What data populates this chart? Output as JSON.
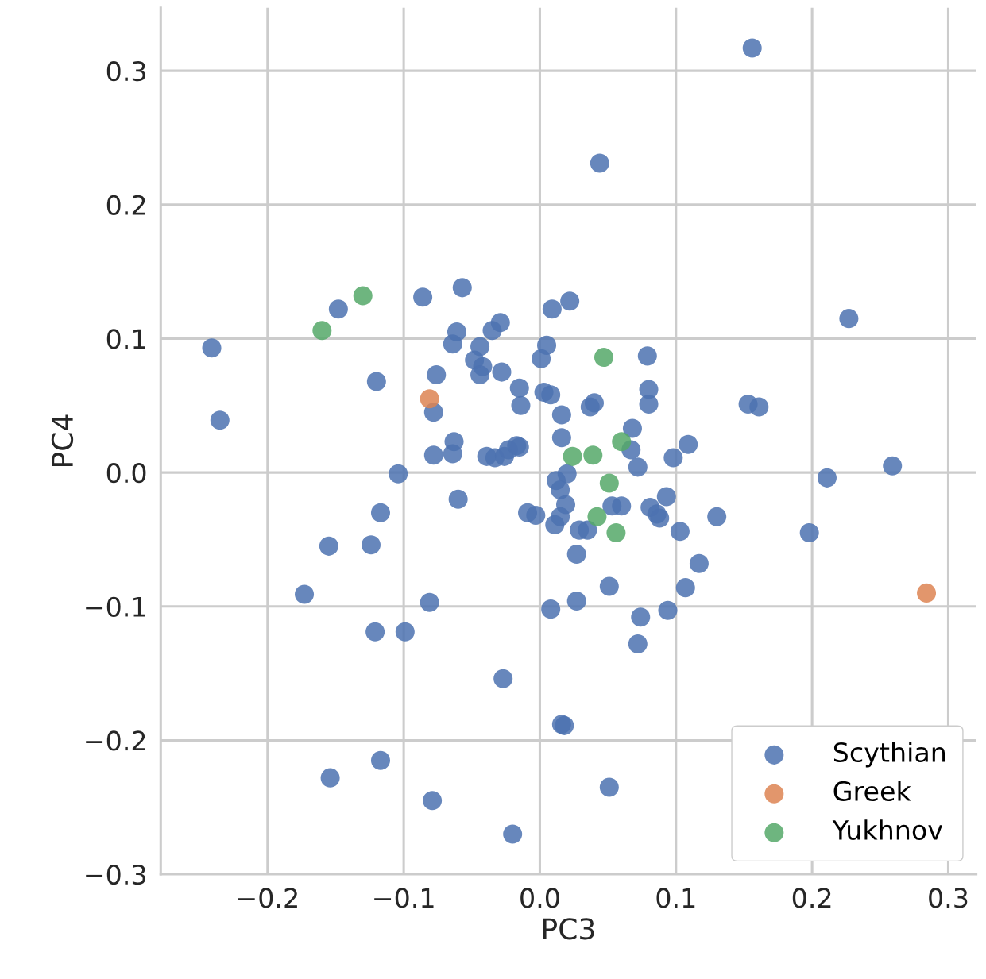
{
  "chart_data": {
    "type": "scatter",
    "xlabel": "PC3",
    "ylabel": "PC4",
    "xlim": [
      -0.2785,
      0.3205
    ],
    "ylim": [
      -0.3,
      0.347
    ],
    "xticks": [
      {
        "value": -0.2,
        "label": "−0.2"
      },
      {
        "value": -0.1,
        "label": "−0.1"
      },
      {
        "value": 0.0,
        "label": "0.0"
      },
      {
        "value": 0.1,
        "label": "0.1"
      },
      {
        "value": 0.2,
        "label": "0.2"
      },
      {
        "value": 0.3,
        "label": "0.3"
      }
    ],
    "yticks": [
      {
        "value": -0.3,
        "label": "−0.3"
      },
      {
        "value": -0.2,
        "label": "−0.2"
      },
      {
        "value": -0.1,
        "label": "−0.1"
      },
      {
        "value": 0.0,
        "label": "0.0"
      },
      {
        "value": 0.1,
        "label": "0.1"
      },
      {
        "value": 0.2,
        "label": "0.2"
      },
      {
        "value": 0.3,
        "label": "0.3"
      }
    ],
    "grid": true,
    "legend": "bottom right",
    "marker": "circle",
    "series": [
      {
        "name": "Scythian",
        "color": "#4c72b0",
        "x": [
          0.156,
          0.044,
          0.227,
          -0.241,
          -0.235,
          -0.148,
          -0.086,
          -0.057,
          0.009,
          0.022,
          -0.061,
          -0.029,
          -0.035,
          -0.064,
          -0.044,
          0.005,
          -0.048,
          -0.042,
          -0.044,
          -0.028,
          -0.076,
          0.001,
          0.079,
          -0.12,
          -0.015,
          -0.014,
          0.003,
          0.008,
          0.016,
          0.037,
          0.04,
          0.08,
          0.08,
          0.153,
          0.161,
          -0.078,
          -0.063,
          -0.064,
          -0.078,
          -0.039,
          -0.033,
          -0.026,
          -0.023,
          -0.017,
          -0.015,
          0.016,
          0.068,
          0.067,
          0.072,
          0.098,
          0.109,
          -0.104,
          -0.06,
          0.012,
          0.02,
          0.015,
          0.019,
          -0.009,
          -0.003,
          0.015,
          0.011,
          0.029,
          0.035,
          0.053,
          0.06,
          0.081,
          0.086,
          0.088,
          0.093,
          0.103,
          0.13,
          0.117,
          0.107,
          0.027,
          0.051,
          0.027,
          0.008,
          0.074,
          0.094,
          0.072,
          0.211,
          0.259,
          0.198,
          -0.117,
          -0.155,
          -0.124,
          -0.173,
          -0.081,
          -0.121,
          -0.099,
          -0.027,
          0.016,
          0.018,
          -0.117,
          -0.154,
          -0.079,
          0.051,
          -0.02
        ],
        "values": [
          0.317,
          0.231,
          0.115,
          0.093,
          0.039,
          0.122,
          0.131,
          0.138,
          0.122,
          0.128,
          0.105,
          0.112,
          0.106,
          0.096,
          0.094,
          0.095,
          0.084,
          0.079,
          0.073,
          0.075,
          0.073,
          0.085,
          0.087,
          0.068,
          0.063,
          0.05,
          0.06,
          0.058,
          0.043,
          0.049,
          0.052,
          0.062,
          0.051,
          0.051,
          0.049,
          0.045,
          0.023,
          0.014,
          0.013,
          0.012,
          0.011,
          0.012,
          0.017,
          0.02,
          0.019,
          0.026,
          0.033,
          0.017,
          0.004,
          0.011,
          0.021,
          -0.001,
          -0.02,
          -0.006,
          -0.001,
          -0.013,
          -0.024,
          -0.03,
          -0.032,
          -0.033,
          -0.039,
          -0.043,
          -0.043,
          -0.025,
          -0.025,
          -0.026,
          -0.031,
          -0.034,
          -0.018,
          -0.044,
          -0.033,
          -0.068,
          -0.086,
          -0.061,
          -0.085,
          -0.096,
          -0.102,
          -0.108,
          -0.103,
          -0.128,
          -0.004,
          0.005,
          -0.045,
          -0.03,
          -0.055,
          -0.054,
          -0.091,
          -0.097,
          -0.119,
          -0.119,
          -0.154,
          -0.188,
          -0.189,
          -0.215,
          -0.228,
          -0.245,
          -0.235,
          -0.27
        ]
      },
      {
        "name": "Greek",
        "color": "#dd8452",
        "x": [
          -0.081,
          0.284
        ],
        "values": [
          0.055,
          -0.09
        ]
      },
      {
        "name": "Yukhnov",
        "color": "#55a868",
        "x": [
          -0.16,
          -0.13,
          0.047,
          0.06,
          0.024,
          0.039,
          0.051,
          0.042,
          0.056
        ],
        "values": [
          0.106,
          0.132,
          0.086,
          0.023,
          0.012,
          0.013,
          -0.008,
          -0.033,
          -0.045
        ]
      }
    ]
  }
}
